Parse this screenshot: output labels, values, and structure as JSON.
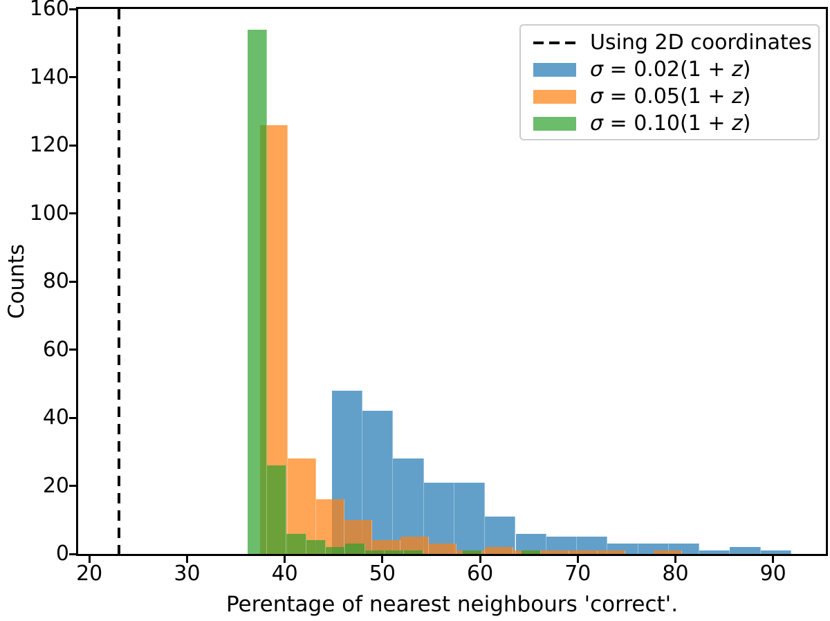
{
  "chart_data": {
    "type": "histogram",
    "title": "",
    "xlabel": "Perentage of nearest neighbours 'correct'.",
    "ylabel": "Counts",
    "xlim": [
      18.85,
      95.4
    ],
    "ylim": [
      0,
      160
    ],
    "xticks": [
      20,
      30,
      40,
      50,
      60,
      70,
      80,
      90
    ],
    "yticks": [
      0,
      20,
      40,
      60,
      80,
      100,
      120,
      140,
      160
    ],
    "grid": false,
    "legend_position": "upper right",
    "vline": {
      "x": 23.0,
      "label": "Using 2D coordinates",
      "color": "#000000",
      "style": "dashed"
    },
    "series": [
      {
        "name": "σ = 0.02(1 + z)",
        "color": "#1f77b4",
        "alpha": 0.7,
        "bin_start": 44.83,
        "bin_width": 3.135,
        "counts": [
          48,
          42,
          28,
          21,
          21,
          11,
          6,
          5,
          5,
          3,
          3,
          3,
          1,
          2,
          1
        ]
      },
      {
        "name": "σ = 0.05(1 + z)",
        "color": "#ff7f0e",
        "alpha": 0.7,
        "bin_start": 37.44,
        "bin_width": 2.88,
        "counts": [
          126,
          28,
          16,
          10,
          4,
          5,
          3,
          1,
          2,
          1,
          1,
          1,
          1,
          0,
          1
        ]
      },
      {
        "name": "σ = 0.10(1 + z)",
        "color": "#2ca02c",
        "alpha": 0.7,
        "bin_start": 36.19,
        "bin_width": 2.003,
        "counts": [
          154,
          26,
          6,
          4,
          2,
          3,
          1,
          1,
          1,
          0,
          0,
          1,
          0,
          0,
          1
        ]
      }
    ]
  }
}
